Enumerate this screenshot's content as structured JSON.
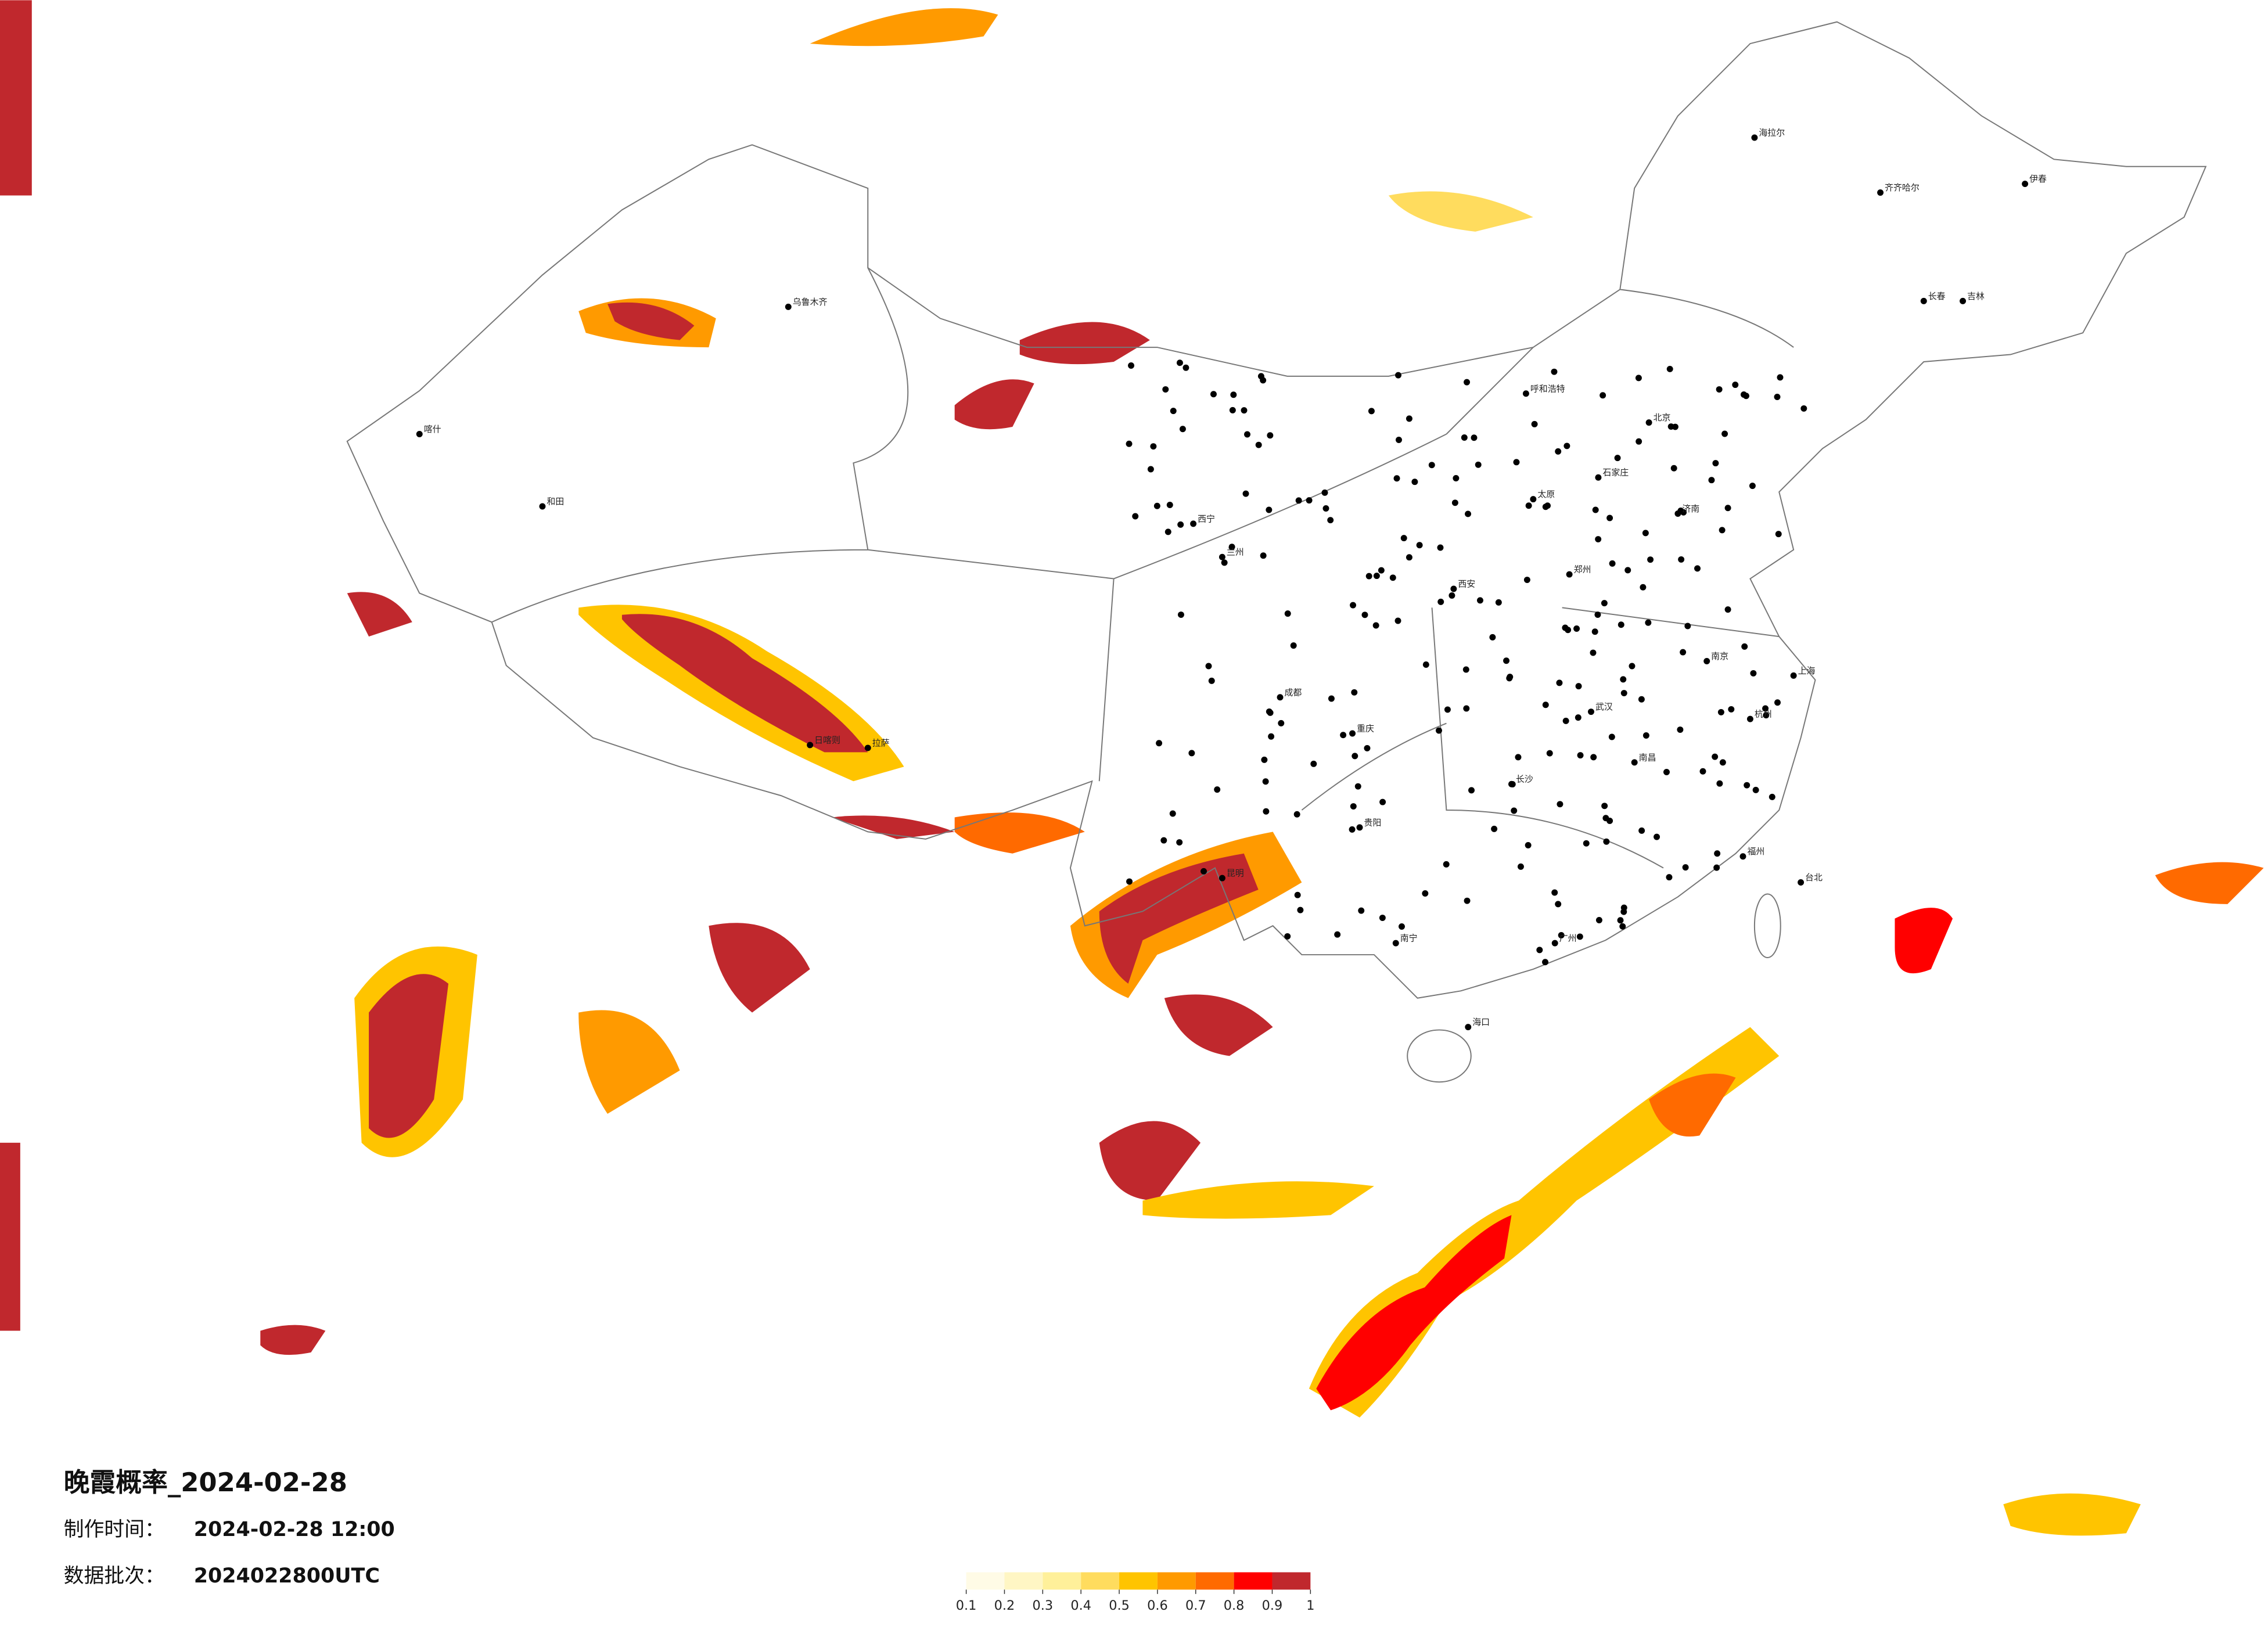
{
  "header": {
    "title": "晚霞概率_2024-02-28",
    "made_label": "制作时间：",
    "made_value": "2024-02-28 12:00",
    "batch_label": "数据批次：",
    "batch_value": "2024022800UTC"
  },
  "colorbar": {
    "ticks": [
      0.1,
      0.2,
      0.3,
      0.4,
      0.5,
      0.6,
      0.7,
      0.8,
      0.9,
      1
    ],
    "colors": [
      "#fffbe6",
      "#fff6c4",
      "#fff09a",
      "#ffdc5e",
      "#ffc400",
      "#ff9a00",
      "#ff6a00",
      "#ff0000",
      "#c0282d"
    ]
  },
  "cities": [
    "海拉尔",
    "齐齐哈尔",
    "伊春",
    "长春",
    "吉林",
    "呼和浩特",
    "北京",
    "石家庄",
    "太原",
    "济南",
    "郑州",
    "西安",
    "兰州",
    "西宁",
    "乌鲁木齐",
    "喀什",
    "和田",
    "拉萨",
    "日喀则",
    "成都",
    "重庆",
    "贵阳",
    "昆明",
    "南宁",
    "广州",
    "长沙",
    "武汉",
    "南昌",
    "福州",
    "杭州",
    "南京",
    "上海",
    "海口",
    "台北"
  ]
}
